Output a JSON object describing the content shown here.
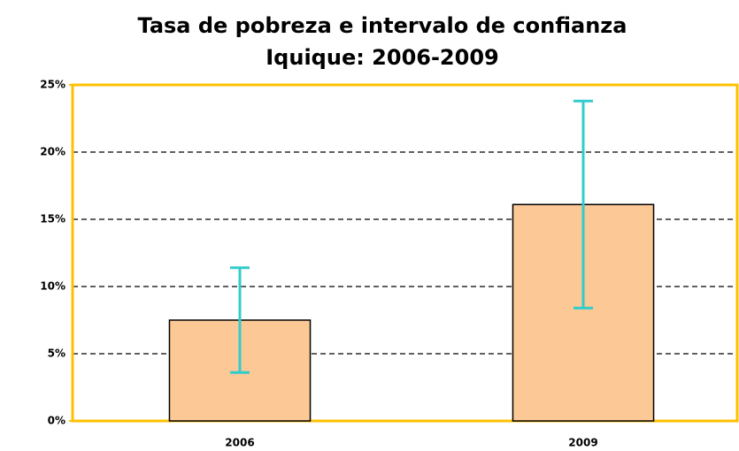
{
  "chart_data": {
    "type": "bar",
    "title": "Tasa de pobreza e intervalo de confianza",
    "subtitle": "Iquique: 2006-2009",
    "categories": [
      "2006",
      "2009"
    ],
    "values": [
      7.5,
      16.1
    ],
    "errors": [
      3.9,
      7.7
    ],
    "color": "#fcc896",
    "error_color": "#33cccc",
    "ylim": [
      0,
      25
    ],
    "yticks": [
      {
        "value": 0,
        "label": "0%"
      },
      {
        "value": 5,
        "label": "5%"
      },
      {
        "value": 10,
        "label": "10%"
      },
      {
        "value": 15,
        "label": "15%"
      },
      {
        "value": 20,
        "label": "20%"
      },
      {
        "value": 25,
        "label": "25%"
      }
    ],
    "grid": true
  }
}
